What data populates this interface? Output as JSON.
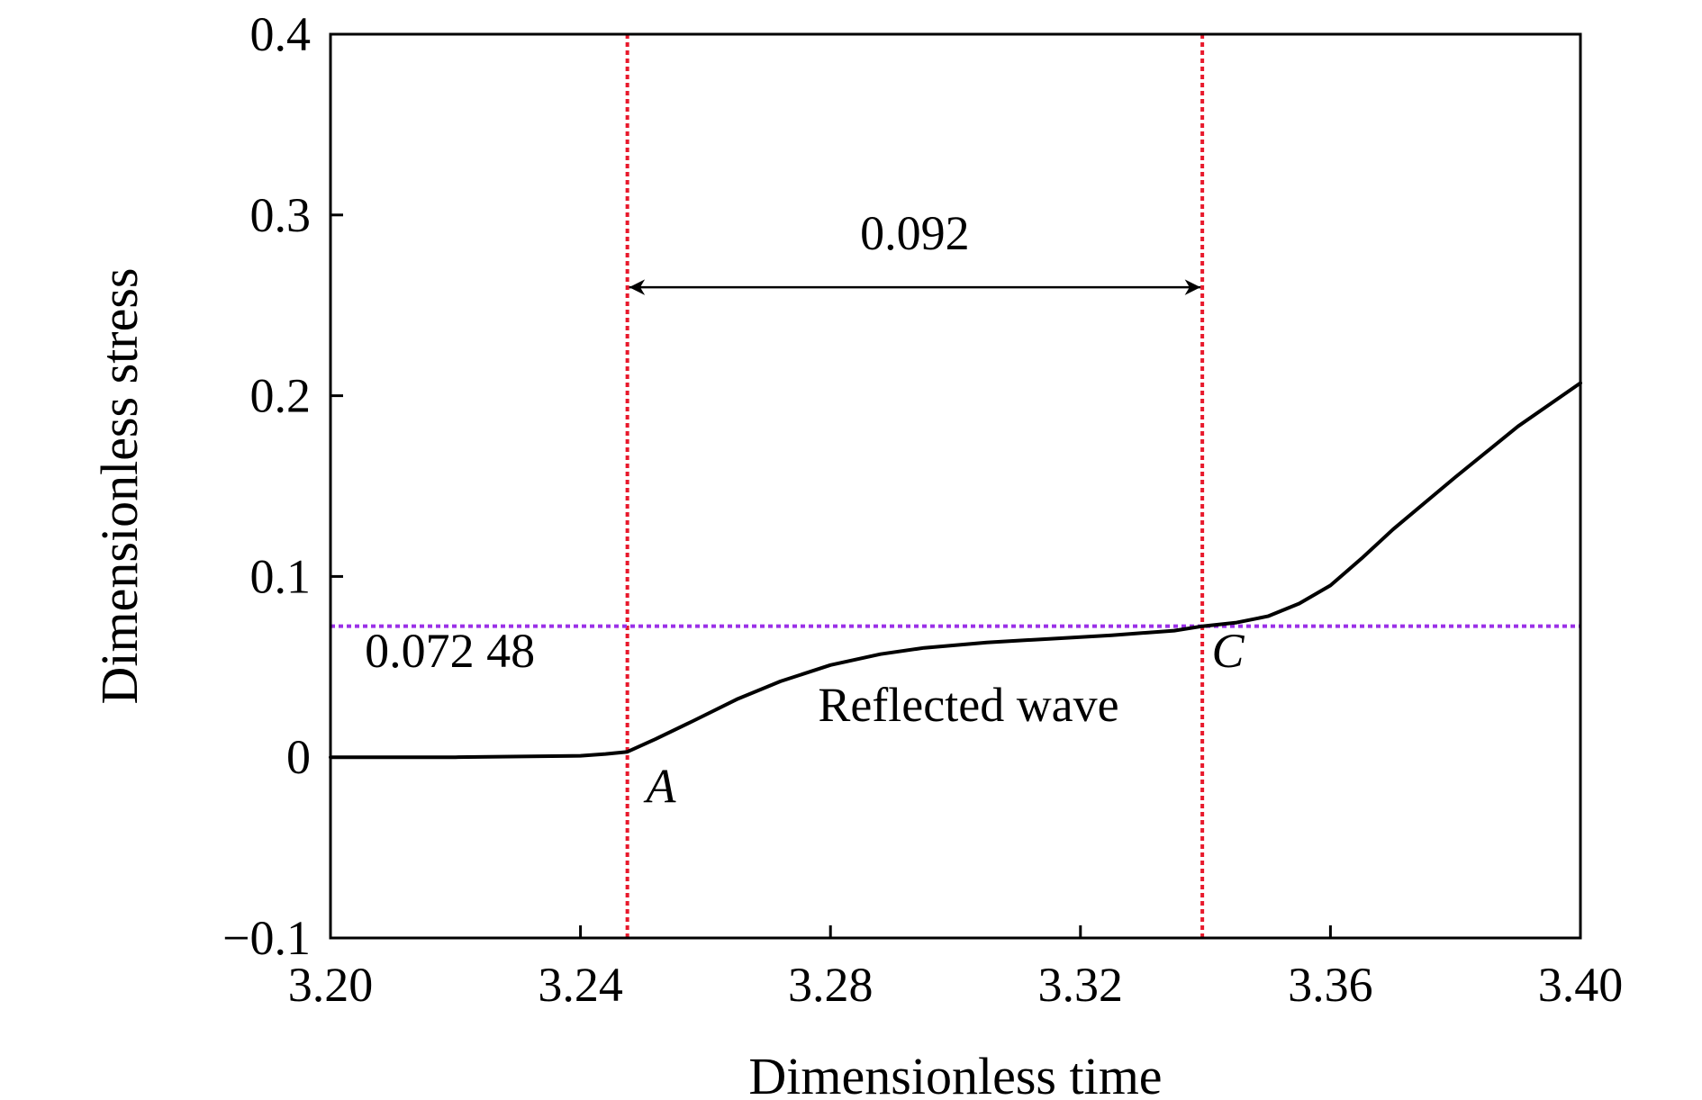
{
  "chart_data": {
    "type": "line",
    "title": "",
    "xlabel": "Dimensionless time",
    "ylabel": "Dimensionless stress",
    "xlim": [
      3.2,
      3.4
    ],
    "ylim": [
      -0.1,
      0.4
    ],
    "x_ticks": [
      3.2,
      3.24,
      3.28,
      3.32,
      3.36,
      3.4
    ],
    "x_tick_labels": [
      "3.20",
      "3.24",
      "3.28",
      "3.32",
      "3.36",
      "3.40"
    ],
    "y_ticks": [
      -0.1,
      0,
      0.1,
      0.2,
      0.3,
      0.4
    ],
    "y_tick_labels": [
      "−0.1",
      "0",
      "0.1",
      "0.2",
      "0.3",
      "0.4"
    ],
    "grid": false,
    "series": [
      {
        "color": "#000000",
        "x": [
          3.2,
          3.22,
          3.24,
          3.244,
          3.2475,
          3.252,
          3.258,
          3.265,
          3.272,
          3.28,
          3.288,
          3.295,
          3.305,
          3.315,
          3.325,
          3.335,
          3.3395,
          3.345,
          3.35,
          3.355,
          3.36,
          3.365,
          3.37,
          3.38,
          3.39,
          3.4
        ],
        "y": [
          0.0,
          0.0,
          0.0008,
          0.0018,
          0.003,
          0.01,
          0.02,
          0.032,
          0.042,
          0.051,
          0.057,
          0.0605,
          0.0635,
          0.0655,
          0.0675,
          0.07,
          0.07248,
          0.0745,
          0.078,
          0.085,
          0.095,
          0.11,
          0.126,
          0.155,
          0.183,
          0.207
        ]
      }
    ],
    "reference_lines": {
      "vertical": [
        {
          "x": 3.2475,
          "color": "#e8192c"
        },
        {
          "x": 3.3395,
          "color": "#e8192c"
        }
      ],
      "horizontal": [
        {
          "y": 0.07248,
          "color": "#9b30e8"
        }
      ]
    },
    "interval_arrow": {
      "x_start": 3.2475,
      "x_end": 3.3395,
      "y": 0.26,
      "label": "0.092"
    },
    "annotations": [
      {
        "text": "0.072 48",
        "x": 3.2055,
        "y": 0.05,
        "italic": false
      },
      {
        "text": "Reflected wave",
        "x": 3.278,
        "y": 0.02,
        "italic": false
      },
      {
        "text": "A",
        "x": 3.2505,
        "y": -0.025,
        "italic": true
      },
      {
        "text": "C",
        "x": 3.341,
        "y": 0.05,
        "italic": true
      }
    ]
  }
}
